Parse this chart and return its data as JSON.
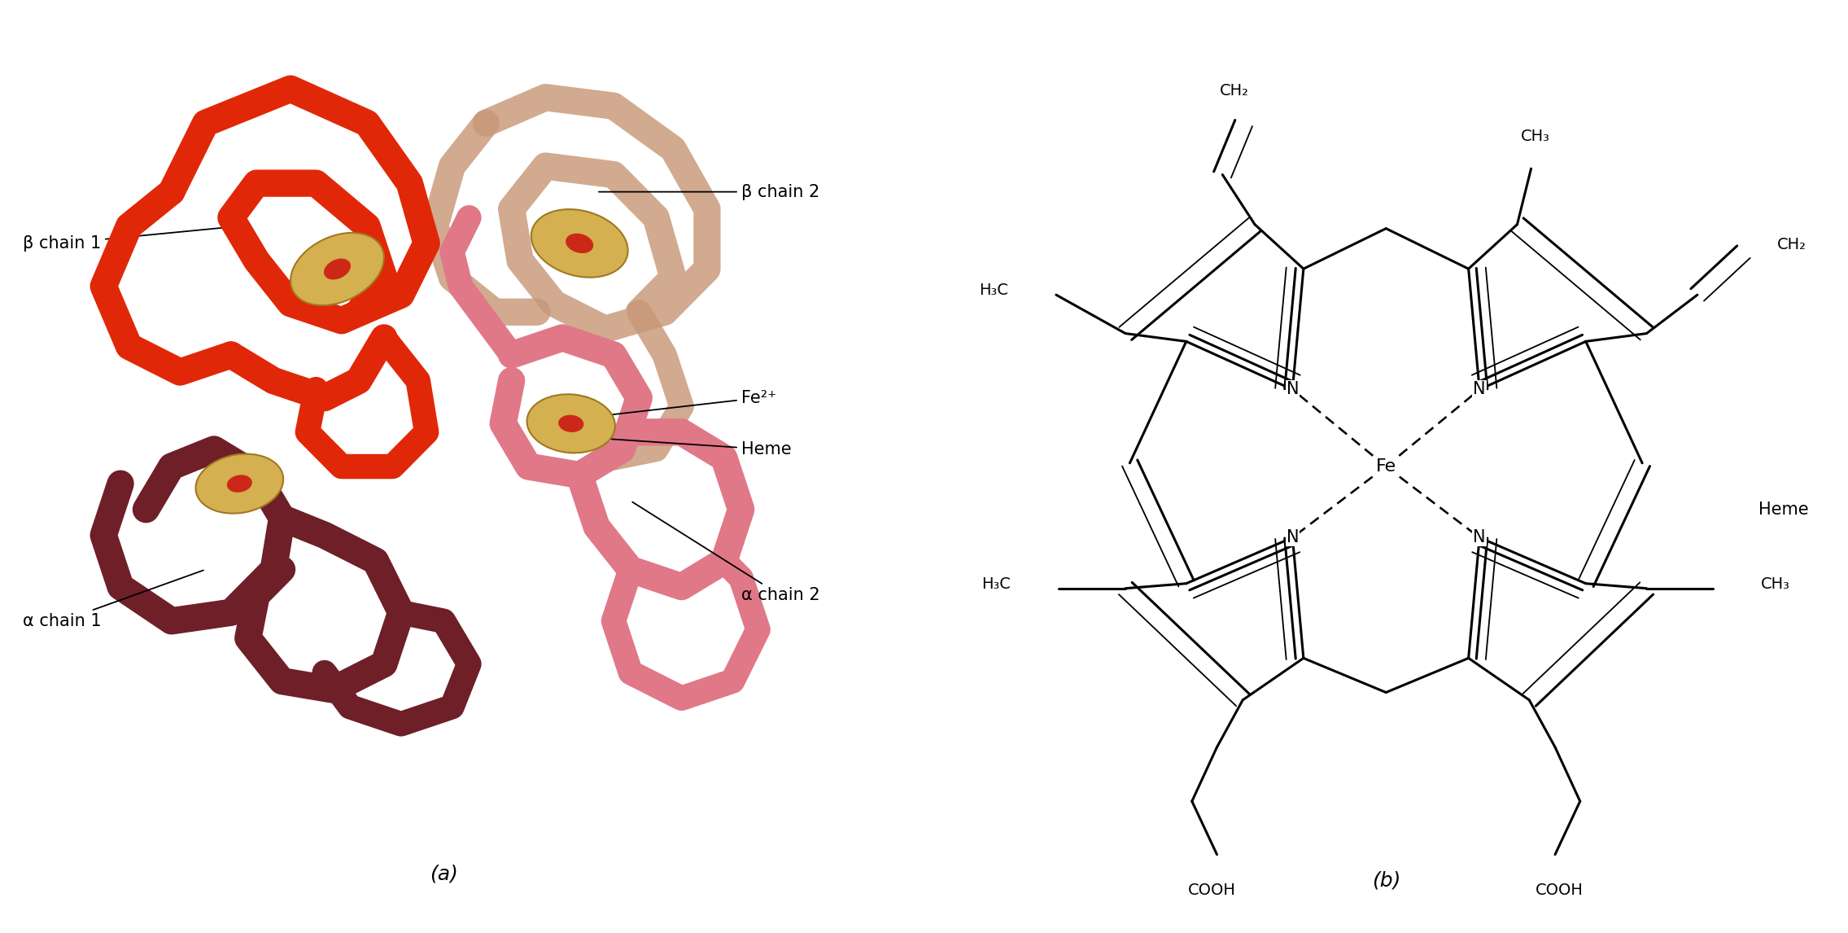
{
  "bg_color": "#ffffff",
  "label_a": "(a)",
  "label_b": "(b)",
  "panel_a_labels": {
    "beta_chain_1": "β chain 1",
    "beta_chain_2": "β chain 2",
    "alpha_chain_1": "α chain 1",
    "alpha_chain_2": "α chain 2",
    "fe2plus": "Fe²⁺",
    "heme": "Heme"
  },
  "panel_b_label": "Heme",
  "line_color": "#000000",
  "line_width": 2.2,
  "font_size_labels": 15,
  "font_size_atoms": 15,
  "font_size_panel": 18,
  "colors": {
    "beta1": "#e02808",
    "beta2": "#c89878",
    "alpha1": "#6e1f28",
    "alpha2": "#e07888",
    "heme_outer": "#d4b050",
    "heme_inner": "#cc2818"
  }
}
